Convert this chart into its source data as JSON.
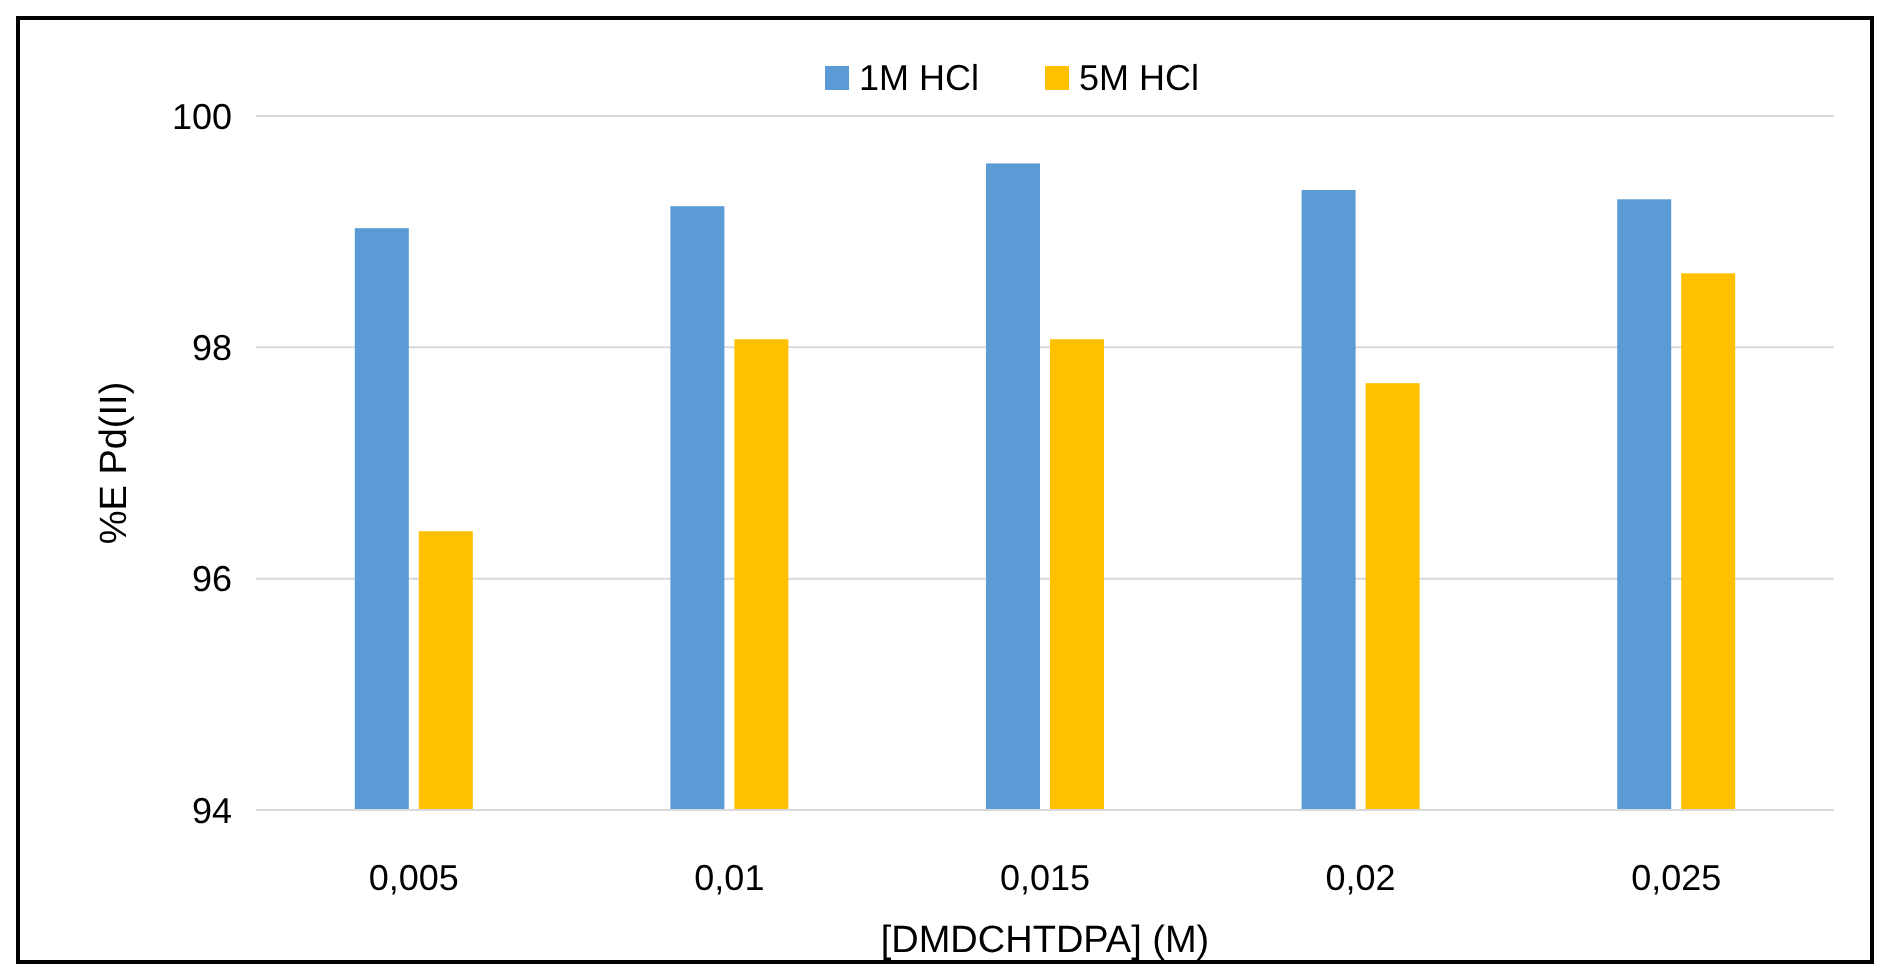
{
  "chart_data": {
    "type": "bar",
    "xlabel": "[DMDCHTDPA] (M)",
    "ylabel": "%E Pd(II)",
    "categories": [
      "0,005",
      "0,01",
      "0,015",
      "0,02",
      "0,025"
    ],
    "series": [
      {
        "name": "1M HCl",
        "color": "#5b9bd5",
        "values": [
          99.03,
          99.22,
          99.59,
          99.36,
          99.28
        ]
      },
      {
        "name": "5M HCl",
        "color": "#ffc000",
        "values": [
          96.41,
          98.07,
          98.07,
          97.69,
          98.64
        ]
      }
    ],
    "ylim": [
      94,
      100
    ],
    "yticks": [
      94,
      96,
      98,
      100
    ],
    "grid": "y",
    "legend": "top"
  }
}
